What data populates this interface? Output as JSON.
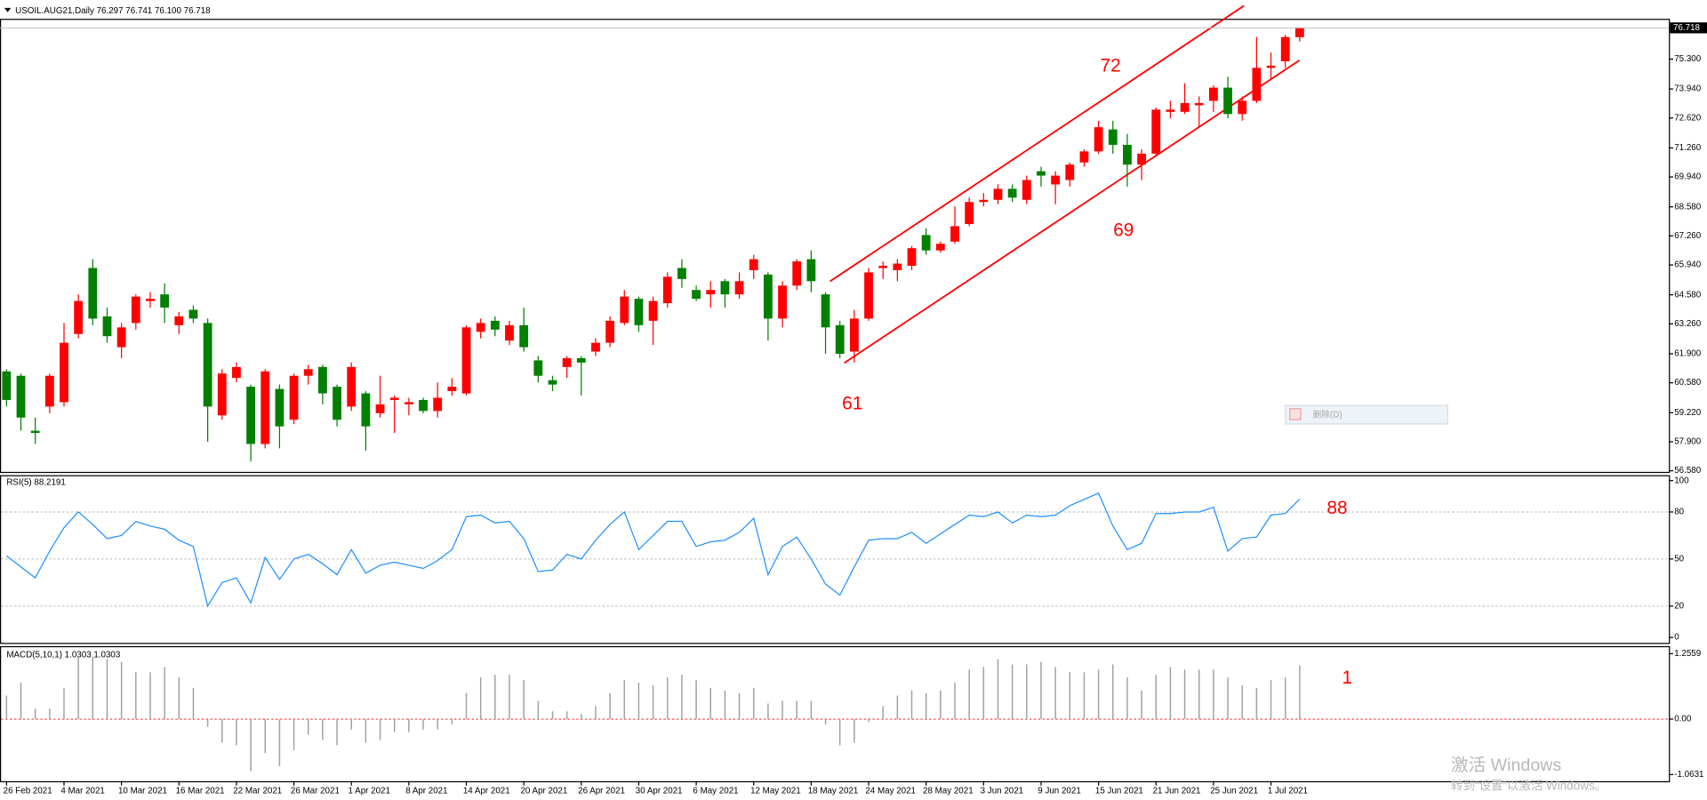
{
  "chart_data": [
    {
      "type": "candlestick",
      "title": "USOIL.AUG21,Daily 76.297 76.741 76.100 76.718",
      "categories": [
        "26 Feb 2021",
        null,
        null,
        null,
        "4 Mar 2021",
        null,
        null,
        null,
        "10 Mar 2021",
        null,
        null,
        null,
        "16 Mar 2021",
        null,
        null,
        null,
        "22 Mar 2021",
        null,
        null,
        null,
        "26 Mar 2021",
        null,
        null,
        null,
        "1 Apr 2021",
        null,
        null,
        null,
        "8 Apr 2021",
        null,
        null,
        null,
        "14 Apr 2021",
        null,
        null,
        null,
        "20 Apr 2021",
        null,
        null,
        null,
        "26 Apr 2021",
        null,
        null,
        null,
        "30 Apr 2021",
        null,
        null,
        null,
        "6 May 2021",
        null,
        null,
        null,
        "12 May 2021",
        null,
        null,
        null,
        "18 May 2021",
        null,
        null,
        null,
        "24 May 2021",
        null,
        null,
        null,
        "28 May 2021",
        null,
        null,
        null,
        "3 Jun 2021",
        null,
        null,
        null,
        "9 Jun 2021",
        null,
        null,
        null,
        "15 Jun 2021",
        null,
        null,
        null,
        "21 Jun 2021",
        null,
        null,
        null,
        "25 Jun 2021",
        null,
        null,
        null,
        "1 Jul 2021",
        null,
        null
      ],
      "open": [
        61.1,
        60.9,
        58.4,
        59.5,
        59.7,
        62.8,
        65.8,
        63.6,
        62.2,
        63.3,
        64.3,
        64.6,
        63.2,
        63.9,
        63.3,
        59.1,
        60.8,
        60.4,
        57.8,
        60.3,
        58.9,
        60.9,
        61.3,
        60.4,
        59.5,
        60.1,
        59.2,
        59.8,
        59.6,
        59.8,
        59.3,
        60.2,
        60.1,
        62.9,
        63.4,
        62.5,
        63.2,
        61.6,
        60.7,
        61.3,
        61.7,
        62.0,
        62.4,
        63.3,
        64.4,
        63.4,
        64.2,
        65.8,
        64.8,
        64.6,
        65.2,
        64.6,
        65.7,
        65.5,
        63.5,
        65.0,
        66.2,
        64.6,
        63.2,
        62.0,
        63.5,
        65.8,
        65.7,
        65.9,
        67.3,
        66.6,
        67.0,
        67.8,
        68.8,
        68.9,
        69.4,
        68.9,
        70.2,
        69.6,
        69.8,
        70.6,
        71.1,
        72.1,
        71.4,
        70.5,
        71.0,
        72.9,
        72.9,
        73.2,
        73.4,
        74.0,
        72.8,
        73.4,
        74.9,
        75.2,
        76.297
      ],
      "high": [
        61.2,
        61.0,
        59.0,
        61.0,
        63.3,
        64.6,
        66.2,
        64.0,
        63.3,
        64.6,
        64.7,
        65.1,
        63.8,
        64.1,
        63.5,
        61.2,
        61.5,
        60.5,
        61.2,
        60.5,
        61.0,
        61.4,
        61.4,
        60.5,
        61.5,
        60.2,
        60.9,
        60.0,
        59.9,
        59.9,
        60.6,
        60.8,
        63.2,
        63.5,
        63.6,
        63.4,
        64.0,
        61.8,
        60.9,
        61.8,
        61.8,
        62.6,
        63.6,
        64.8,
        64.5,
        64.5,
        65.6,
        66.2,
        65.0,
        65.2,
        65.3,
        65.6,
        66.4,
        65.6,
        65.2,
        66.2,
        66.6,
        64.7,
        63.4,
        63.9,
        65.8,
        66.1,
        66.2,
        66.8,
        67.6,
        67.0,
        68.6,
        69.0,
        69.2,
        69.6,
        69.6,
        70.0,
        70.4,
        70.2,
        70.6,
        71.2,
        72.5,
        72.5,
        71.9,
        71.2,
        73.1,
        73.4,
        74.2,
        73.6,
        74.1,
        74.5,
        73.6,
        76.3,
        75.6,
        76.4,
        76.741
      ],
      "low": [
        59.5,
        58.4,
        57.8,
        59.2,
        59.5,
        62.6,
        63.2,
        62.4,
        61.7,
        63.0,
        64.0,
        63.3,
        62.8,
        63.3,
        57.9,
        58.9,
        60.6,
        57.0,
        57.6,
        57.6,
        58.7,
        60.5,
        59.6,
        58.6,
        59.3,
        57.5,
        59.0,
        58.3,
        59.1,
        59.2,
        59.0,
        60.0,
        60.0,
        62.6,
        62.7,
        62.3,
        62.0,
        60.6,
        60.2,
        60.8,
        60.0,
        61.8,
        62.2,
        63.2,
        62.9,
        62.3,
        64.0,
        64.9,
        64.3,
        64.0,
        64.0,
        64.4,
        65.3,
        62.5,
        63.1,
        64.8,
        64.7,
        61.9,
        61.7,
        61.5,
        63.4,
        65.3,
        65.2,
        65.7,
        66.4,
        66.5,
        66.9,
        67.7,
        68.6,
        68.7,
        68.8,
        68.7,
        69.5,
        68.7,
        69.5,
        70.4,
        71.0,
        71.0,
        69.5,
        69.8,
        70.9,
        72.6,
        72.8,
        72.2,
        72.9,
        72.6,
        72.5,
        73.3,
        74.4,
        74.9,
        76.1
      ],
      "close": [
        59.8,
        59.0,
        58.3,
        60.9,
        62.4,
        64.3,
        63.5,
        62.7,
        63.1,
        64.5,
        64.4,
        64.0,
        63.6,
        63.5,
        59.5,
        61.0,
        61.3,
        57.8,
        61.1,
        58.6,
        60.9,
        61.2,
        60.1,
        58.9,
        61.3,
        58.6,
        59.6,
        59.9,
        59.7,
        59.3,
        59.9,
        60.4,
        63.1,
        63.3,
        63.0,
        63.2,
        62.2,
        60.9,
        60.5,
        61.7,
        61.5,
        62.4,
        63.4,
        64.5,
        63.2,
        64.3,
        65.4,
        65.3,
        64.4,
        64.8,
        64.6,
        65.2,
        66.2,
        63.5,
        65.0,
        66.1,
        65.2,
        63.1,
        61.9,
        63.5,
        65.6,
        65.9,
        66.0,
        66.7,
        66.6,
        66.9,
        67.7,
        68.8,
        68.9,
        69.4,
        69.0,
        69.8,
        70.0,
        70.0,
        70.5,
        71.1,
        72.2,
        71.4,
        70.5,
        71.0,
        73.0,
        73.0,
        73.3,
        73.3,
        74.0,
        72.8,
        73.4,
        74.9,
        75.0,
        76.3,
        76.718
      ],
      "up_color": "#ff0000",
      "down_color": "#008000",
      "ylim": [
        56.53,
        77.13
      ],
      "yticks": [
        {
          "value": 56.58,
          "label": "56.580"
        },
        {
          "value": 57.9,
          "label": "57.900"
        },
        {
          "value": 59.22,
          "label": "59.220"
        },
        {
          "value": 60.58,
          "label": "60.580"
        },
        {
          "value": 61.9,
          "label": "61.900"
        },
        {
          "value": 63.26,
          "label": "63.260"
        },
        {
          "value": 64.58,
          "label": "64.580"
        },
        {
          "value": 65.94,
          "label": "65.940"
        },
        {
          "value": 67.26,
          "label": "67.260"
        },
        {
          "value": 68.58,
          "label": "68.580"
        },
        {
          "value": 69.94,
          "label": "69.940"
        },
        {
          "value": 71.26,
          "label": "71.260"
        },
        {
          "value": 72.62,
          "label": "72.620"
        },
        {
          "value": 73.94,
          "label": "73.940"
        },
        {
          "value": 75.3,
          "label": "75.300"
        }
      ],
      "annotations": [
        "72",
        "69",
        "61"
      ]
    },
    {
      "type": "line",
      "title": "RSI(5) 88.2191",
      "values": [
        52,
        45,
        38,
        55,
        70,
        80,
        72,
        63,
        65,
        74,
        71,
        69,
        62,
        58,
        20,
        35,
        38,
        22,
        51,
        37,
        50,
        53,
        47,
        40,
        56,
        41,
        46,
        48,
        46,
        44,
        49,
        56,
        77,
        78,
        73,
        74,
        63,
        42,
        43,
        53,
        50,
        62,
        72,
        80,
        56,
        65,
        74,
        74,
        58,
        61,
        62,
        67,
        76,
        40,
        58,
        64,
        50,
        34,
        27,
        45,
        62,
        63,
        63,
        67,
        60,
        66,
        72,
        78,
        77,
        80,
        73,
        78,
        77,
        78,
        84,
        88,
        92,
        71,
        56,
        60,
        79,
        79,
        80,
        80,
        83,
        55,
        63,
        64,
        78,
        79,
        88.2191
      ],
      "color": "#1e90ff",
      "ylim": [
        0,
        100
      ],
      "yticks": [
        0,
        20,
        50,
        80,
        100
      ],
      "grid": true,
      "annotations": [
        "88"
      ]
    },
    {
      "type": "bar",
      "title": "MACD(5,10,1) 1.0303 1.0303",
      "values": [
        0.45,
        0.7,
        0.2,
        0.2,
        0.6,
        1.2,
        1.2,
        1.15,
        1.1,
        0.9,
        0.9,
        1.0,
        0.8,
        0.6,
        -0.15,
        -0.45,
        -0.5,
        -1.0,
        -0.65,
        -0.9,
        -0.6,
        -0.3,
        -0.4,
        -0.5,
        -0.2,
        -0.45,
        -0.4,
        -0.25,
        -0.25,
        -0.2,
        -0.2,
        -0.1,
        0.5,
        0.8,
        0.85,
        0.85,
        0.75,
        0.35,
        0.15,
        0.15,
        0.1,
        0.25,
        0.5,
        0.75,
        0.7,
        0.65,
        0.8,
        0.85,
        0.75,
        0.6,
        0.55,
        0.5,
        0.6,
        0.3,
        0.35,
        0.35,
        0.35,
        -0.1,
        -0.5,
        -0.45,
        -0.05,
        0.25,
        0.45,
        0.55,
        0.5,
        0.55,
        0.7,
        0.95,
        1.0,
        1.15,
        1.05,
        1.05,
        1.1,
        1.0,
        0.9,
        0.9,
        0.95,
        1.05,
        0.8,
        0.55,
        0.85,
        1.0,
        0.95,
        0.95,
        0.95,
        0.8,
        0.65,
        0.6,
        0.75,
        0.8,
        1.0303
      ],
      "color": "#a0a0a0",
      "zero_line_color": "#ff0000",
      "ylim": [
        -1.19,
        1.4
      ],
      "yticks": [
        -1.0631,
        {
          "value": 0,
          "label": "0.00"
        },
        1.2559
      ],
      "annotations": [
        "1"
      ]
    }
  ],
  "overlay": {
    "menu_item": "删除(D)",
    "watermark": [
      "激活 Windows",
      "转到“设置”以激活 Windows。"
    ]
  }
}
